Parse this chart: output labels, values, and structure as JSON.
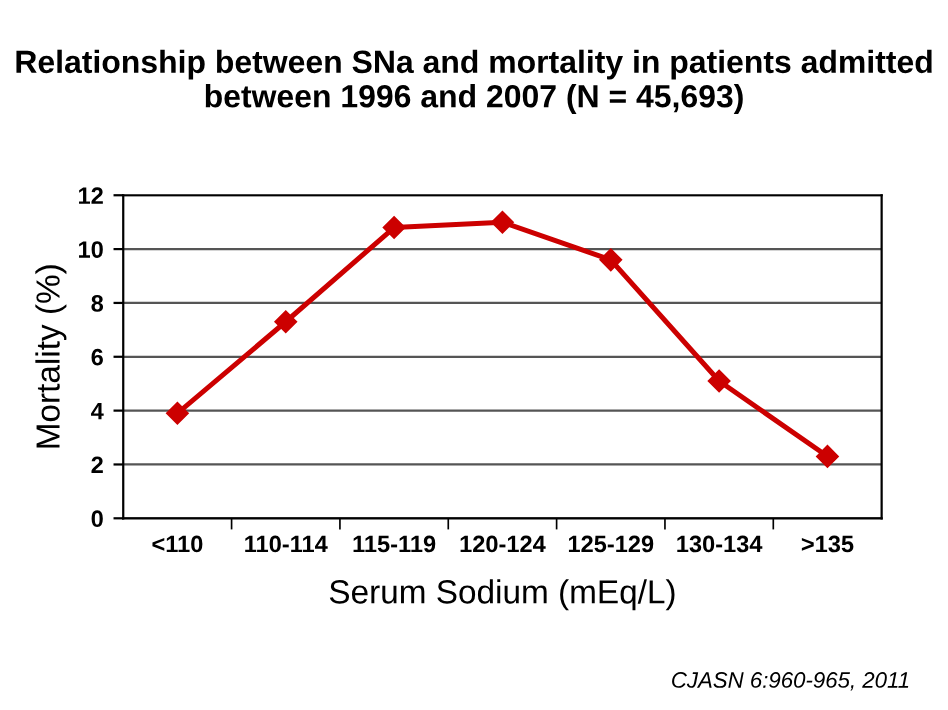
{
  "chart_data": {
    "type": "line",
    "title": "Relationship between SNa and mortality in patients admitted between 1996 and 2007 (N = 45,693)",
    "xlabel": "Serum Sodium (mEq/L)",
    "ylabel": "Mortality (%)",
    "categories": [
      "<110",
      "110-114",
      "115-119",
      "120-124",
      "125-129",
      "130-134",
      ">135"
    ],
    "series": [
      {
        "color": "#cc0000",
        "values": [
          3.9,
          7.3,
          10.8,
          11.0,
          9.6,
          5.1,
          2.3
        ]
      }
    ],
    "ylim": [
      0,
      12
    ],
    "yticks": [
      0,
      2,
      4,
      6,
      8,
      10,
      12
    ],
    "grid": "y",
    "marker": "diamond",
    "line_style": "solid",
    "legend": false,
    "annotations": [
      "CJASN 6:960-965, 2011"
    ]
  }
}
